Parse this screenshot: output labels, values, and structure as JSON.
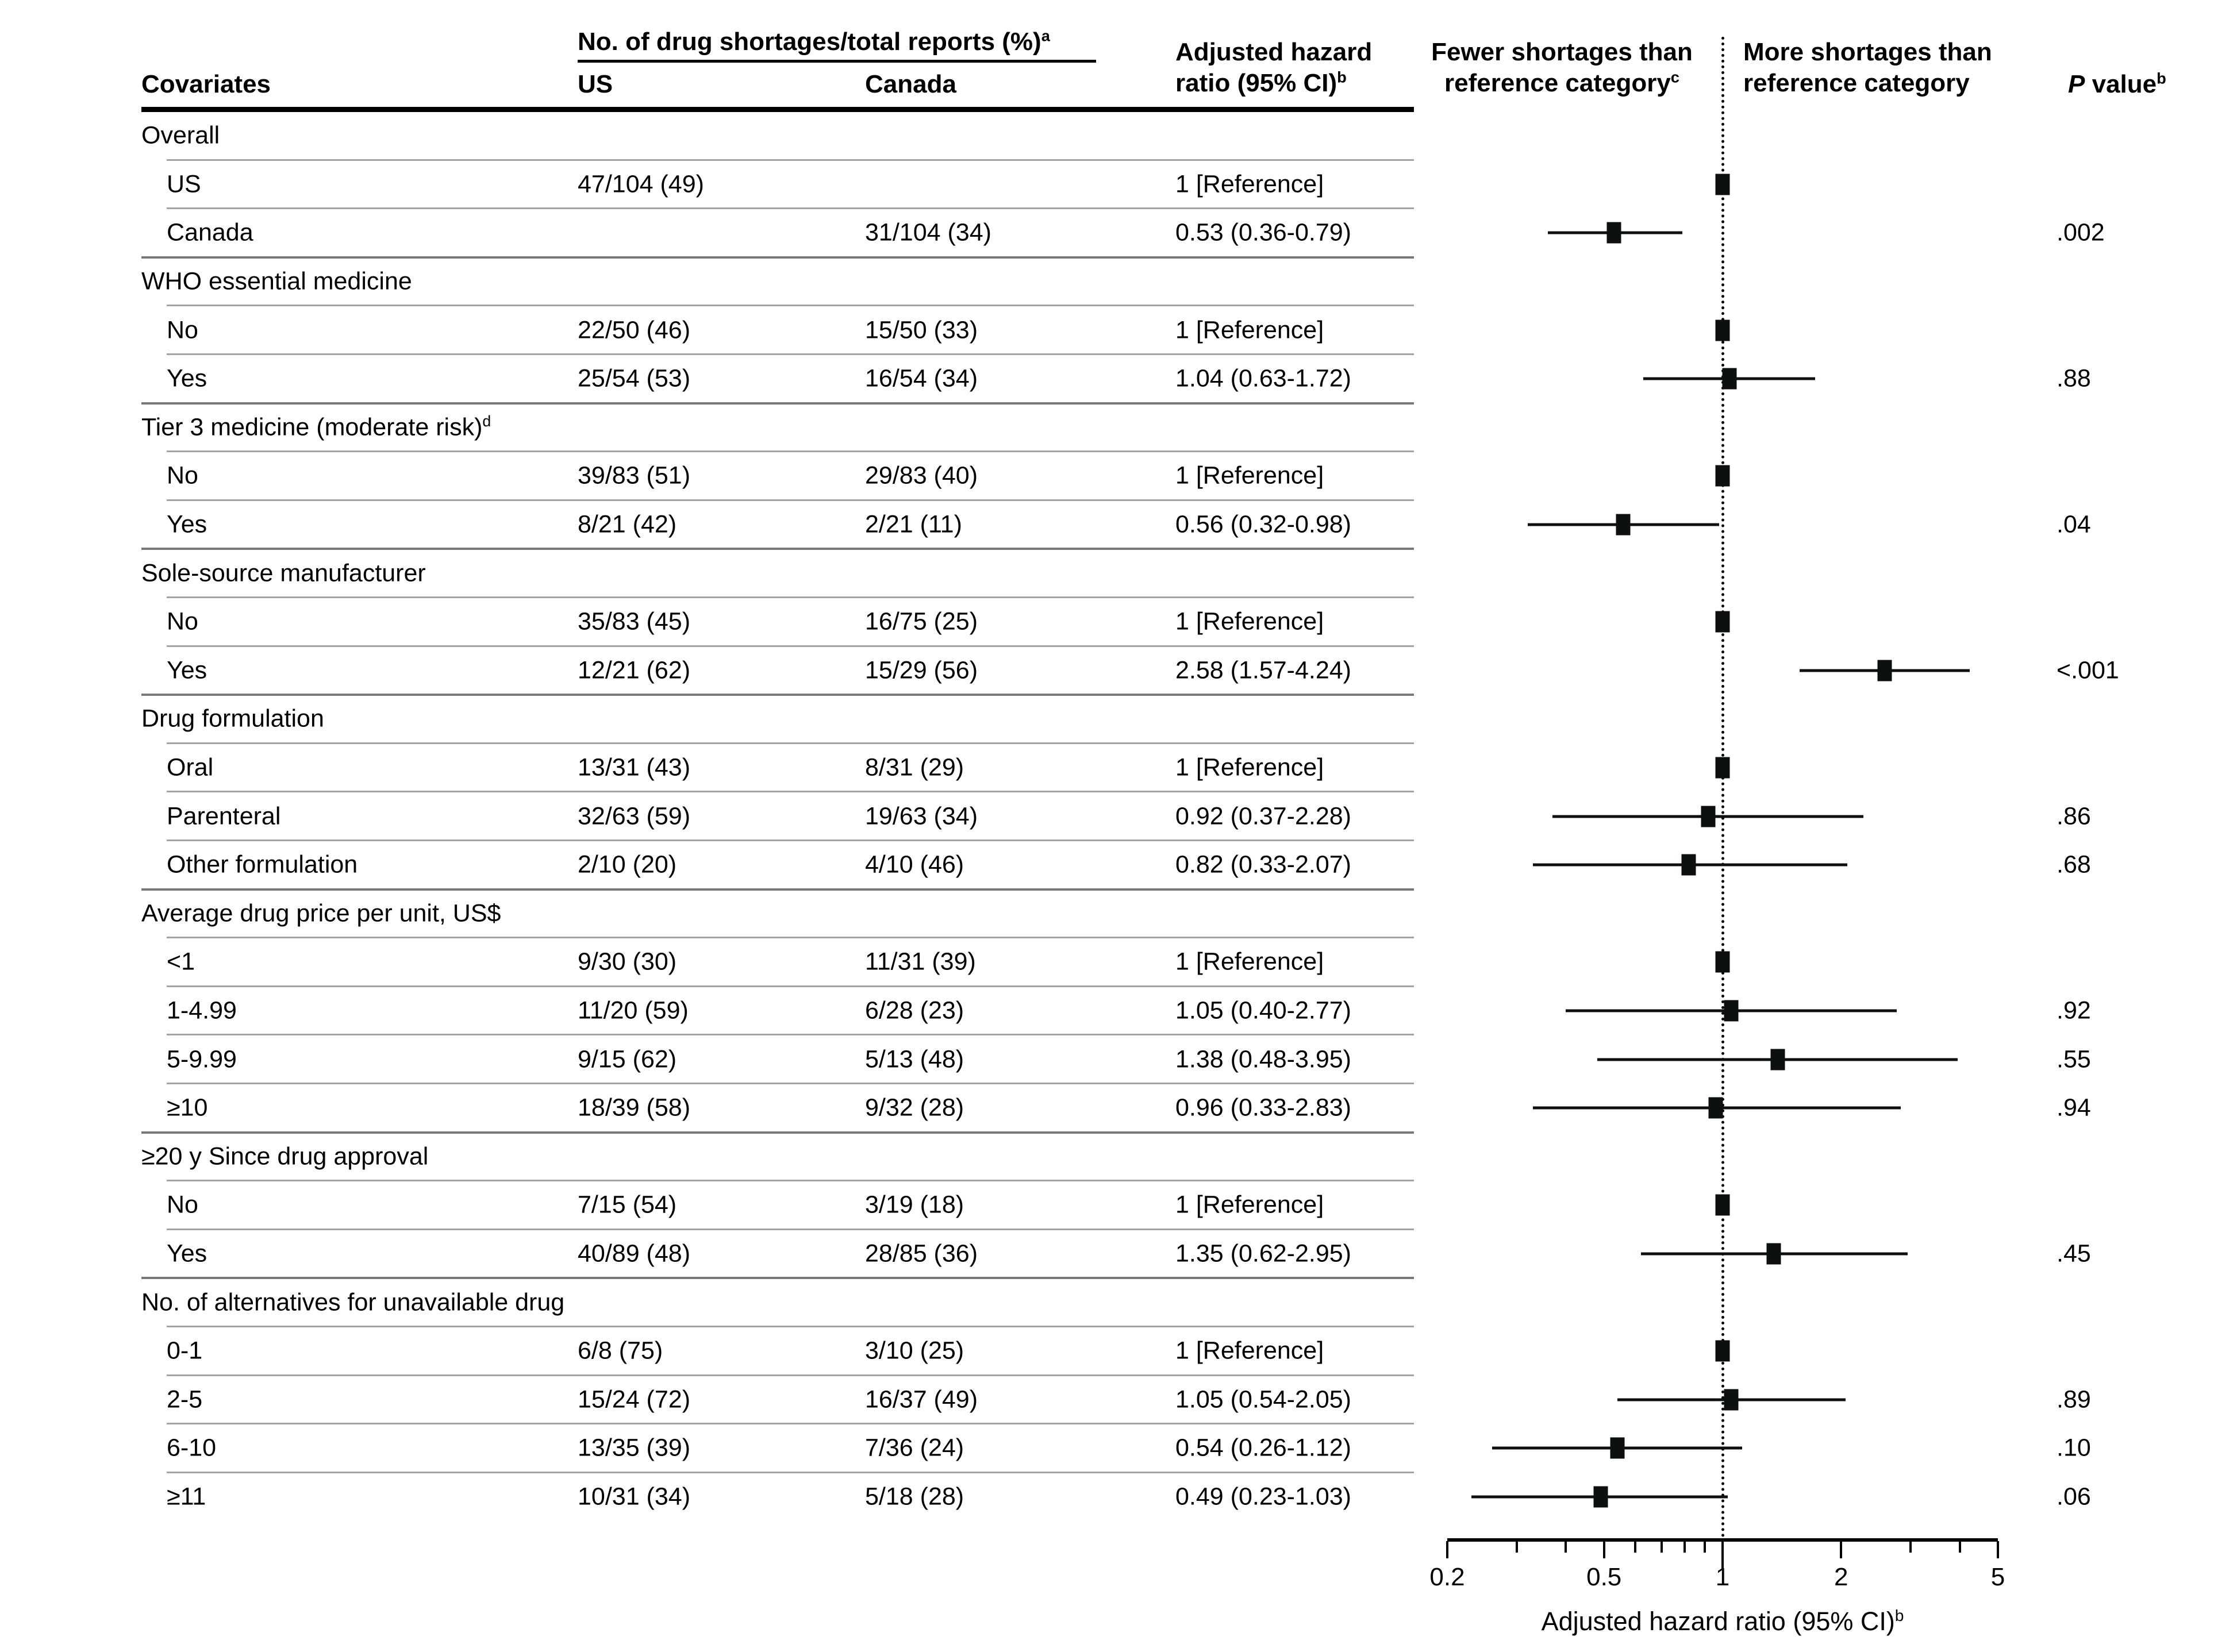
{
  "header": {
    "covariates": "Covariates",
    "group_col": "No. of drug shortages/total reports (%)",
    "group_col_sup": "a",
    "us": "US",
    "canada": "Canada",
    "ahr_line1": "Adjusted hazard",
    "ahr_line2": "ratio (95% CI)",
    "ahr_sup": "b",
    "fewer_line1": "Fewer shortages than",
    "fewer_line2": "reference category",
    "fewer_sup": "c",
    "more_line1": "More shortages than",
    "more_line2": "reference category",
    "p_italic": "P",
    "p_rest": "value",
    "p_sup": "b"
  },
  "axis": {
    "min": 0.2,
    "max": 5,
    "ref_value": 1,
    "tick_labels": [
      "0.2",
      "0.5",
      "1",
      "2",
      "5"
    ],
    "tick_label_values": [
      0.2,
      0.5,
      1,
      2,
      5
    ],
    "minor_ticks": [
      0.3,
      0.4,
      0.6,
      0.7,
      0.8,
      0.9,
      3,
      4
    ],
    "caption": "Adjusted hazard ratio (95% CI)",
    "caption_sup": "b"
  },
  "colors": {
    "text": "#000000",
    "marker": "#0c1011",
    "separator_sub": "#a3a3a3",
    "separator_group": "#787878",
    "rule": "#000000"
  },
  "rows": [
    {
      "type": "group",
      "label": "Overall"
    },
    {
      "type": "sub",
      "label": "US",
      "us": "47/104 (49)",
      "canada": "",
      "ahr_text": "1 [Reference]",
      "hr": 1,
      "ref": true
    },
    {
      "type": "sub",
      "label": "Canada",
      "us": "",
      "canada": "31/104 (34)",
      "ahr_text": "0.53 (0.36-0.79)",
      "hr": 0.53,
      "lo": 0.36,
      "hi": 0.79,
      "p": ".002"
    },
    {
      "type": "group",
      "label": "WHO essential medicine"
    },
    {
      "type": "sub",
      "label": "No",
      "us": "22/50 (46)",
      "canada": "15/50 (33)",
      "ahr_text": "1 [Reference]",
      "hr": 1,
      "ref": true
    },
    {
      "type": "sub",
      "label": "Yes",
      "us": "25/54 (53)",
      "canada": "16/54 (34)",
      "ahr_text": "1.04 (0.63-1.72)",
      "hr": 1.04,
      "lo": 0.63,
      "hi": 1.72,
      "p": ".88"
    },
    {
      "type": "group",
      "label": "Tier 3 medicine (moderate risk)",
      "sup": "d"
    },
    {
      "type": "sub",
      "label": "No",
      "us": "39/83 (51)",
      "canada": "29/83 (40)",
      "ahr_text": "1 [Reference]",
      "hr": 1,
      "ref": true
    },
    {
      "type": "sub",
      "label": "Yes",
      "us": "8/21 (42)",
      "canada": "2/21 (11)",
      "ahr_text": "0.56 (0.32-0.98)",
      "hr": 0.56,
      "lo": 0.32,
      "hi": 0.98,
      "p": ".04"
    },
    {
      "type": "group",
      "label": "Sole-source manufacturer"
    },
    {
      "type": "sub",
      "label": "No",
      "us": "35/83 (45)",
      "canada": "16/75 (25)",
      "ahr_text": "1 [Reference]",
      "hr": 1,
      "ref": true
    },
    {
      "type": "sub",
      "label": "Yes",
      "us": "12/21 (62)",
      "canada": "15/29 (56)",
      "ahr_text": "2.58 (1.57-4.24)",
      "hr": 2.58,
      "lo": 1.57,
      "hi": 4.24,
      "p": "<.001"
    },
    {
      "type": "group",
      "label": "Drug formulation"
    },
    {
      "type": "sub",
      "label": "Oral",
      "us": "13/31 (43)",
      "canada": "8/31 (29)",
      "ahr_text": "1 [Reference]",
      "hr": 1,
      "ref": true
    },
    {
      "type": "sub",
      "label": "Parenteral",
      "us": "32/63 (59)",
      "canada": "19/63 (34)",
      "ahr_text": "0.92 (0.37-2.28)",
      "hr": 0.92,
      "lo": 0.37,
      "hi": 2.28,
      "p": ".86"
    },
    {
      "type": "sub",
      "label": "Other formulation",
      "us": "2/10 (20)",
      "canada": "4/10 (46)",
      "ahr_text": "0.82 (0.33-2.07)",
      "hr": 0.82,
      "lo": 0.33,
      "hi": 2.07,
      "p": ".68"
    },
    {
      "type": "group",
      "label": "Average drug price per unit, US$"
    },
    {
      "type": "sub",
      "label": "<1",
      "us": "9/30 (30)",
      "canada": "11/31 (39)",
      "ahr_text": "1 [Reference]",
      "hr": 1,
      "ref": true
    },
    {
      "type": "sub",
      "label": "1-4.99",
      "us": "11/20 (59)",
      "canada": "6/28 (23)",
      "ahr_text": "1.05 (0.40-2.77)",
      "hr": 1.05,
      "lo": 0.4,
      "hi": 2.77,
      "p": ".92"
    },
    {
      "type": "sub",
      "label": "5-9.99",
      "us": "9/15 (62)",
      "canada": "5/13 (48)",
      "ahr_text": "1.38 (0.48-3.95)",
      "hr": 1.38,
      "lo": 0.48,
      "hi": 3.95,
      "p": ".55"
    },
    {
      "type": "sub",
      "label": "≥10",
      "us": "18/39 (58)",
      "canada": "9/32 (28)",
      "ahr_text": "0.96 (0.33-2.83)",
      "hr": 0.96,
      "lo": 0.33,
      "hi": 2.83,
      "p": ".94"
    },
    {
      "type": "group",
      "label": "≥20 y Since drug approval"
    },
    {
      "type": "sub",
      "label": "No",
      "us": "7/15 (54)",
      "canada": "3/19 (18)",
      "ahr_text": "1 [Reference]",
      "hr": 1,
      "ref": true
    },
    {
      "type": "sub",
      "label": "Yes",
      "us": "40/89 (48)",
      "canada": "28/85 (36)",
      "ahr_text": "1.35 (0.62-2.95)",
      "hr": 1.35,
      "lo": 0.62,
      "hi": 2.95,
      "p": ".45"
    },
    {
      "type": "group",
      "label": "No. of alternatives for unavailable drug"
    },
    {
      "type": "sub",
      "label": "0-1",
      "us": "6/8 (75)",
      "canada": "3/10 (25)",
      "ahr_text": "1 [Reference]",
      "hr": 1,
      "ref": true
    },
    {
      "type": "sub",
      "label": "2-5",
      "us": "15/24 (72)",
      "canada": "16/37 (49)",
      "ahr_text": "1.05 (0.54-2.05)",
      "hr": 1.05,
      "lo": 0.54,
      "hi": 2.05,
      "p": ".89"
    },
    {
      "type": "sub",
      "label": "6-10",
      "us": "13/35 (39)",
      "canada": "7/36 (24)",
      "ahr_text": "0.54 (0.26-1.12)",
      "hr": 0.54,
      "lo": 0.26,
      "hi": 1.12,
      "p": ".10"
    },
    {
      "type": "sub",
      "label": "≥11",
      "us": "10/31 (34)",
      "canada": "5/18 (28)",
      "ahr_text": "0.49 (0.23-1.03)",
      "hr": 0.49,
      "lo": 0.23,
      "hi": 1.03,
      "p": ".06"
    }
  ],
  "chart_data": {
    "type": "forest",
    "xlabel": "Adjusted hazard ratio (95% CI)",
    "x_scale": "log",
    "xlim": [
      0.2,
      5
    ],
    "x_ticks": [
      0.2,
      0.5,
      1,
      2,
      5
    ],
    "reference_line": 1,
    "legend_left": "Fewer shortages than reference category",
    "legend_right": "More shortages than reference category",
    "points": [
      {
        "label": "Overall: US",
        "hr": 1,
        "reference": true
      },
      {
        "label": "Overall: Canada",
        "hr": 0.53,
        "ci": [
          0.36,
          0.79
        ],
        "p": ".002"
      },
      {
        "label": "WHO essential medicine: No",
        "hr": 1,
        "reference": true
      },
      {
        "label": "WHO essential medicine: Yes",
        "hr": 1.04,
        "ci": [
          0.63,
          1.72
        ],
        "p": ".88"
      },
      {
        "label": "Tier 3 medicine (moderate risk): No",
        "hr": 1,
        "reference": true
      },
      {
        "label": "Tier 3 medicine (moderate risk): Yes",
        "hr": 0.56,
        "ci": [
          0.32,
          0.98
        ],
        "p": ".04"
      },
      {
        "label": "Sole-source manufacturer: No",
        "hr": 1,
        "reference": true
      },
      {
        "label": "Sole-source manufacturer: Yes",
        "hr": 2.58,
        "ci": [
          1.57,
          4.24
        ],
        "p": "<.001"
      },
      {
        "label": "Drug formulation: Oral",
        "hr": 1,
        "reference": true
      },
      {
        "label": "Drug formulation: Parenteral",
        "hr": 0.92,
        "ci": [
          0.37,
          2.28
        ],
        "p": ".86"
      },
      {
        "label": "Drug formulation: Other formulation",
        "hr": 0.82,
        "ci": [
          0.33,
          2.07
        ],
        "p": ".68"
      },
      {
        "label": "Average drug price per unit, US$: <1",
        "hr": 1,
        "reference": true
      },
      {
        "label": "Average drug price per unit, US$: 1-4.99",
        "hr": 1.05,
        "ci": [
          0.4,
          2.77
        ],
        "p": ".92"
      },
      {
        "label": "Average drug price per unit, US$: 5-9.99",
        "hr": 1.38,
        "ci": [
          0.48,
          3.95
        ],
        "p": ".55"
      },
      {
        "label": "Average drug price per unit, US$: ≥10",
        "hr": 0.96,
        "ci": [
          0.33,
          2.83
        ],
        "p": ".94"
      },
      {
        "label": "≥20 y Since drug approval: No",
        "hr": 1,
        "reference": true
      },
      {
        "label": "≥20 y Since drug approval: Yes",
        "hr": 1.35,
        "ci": [
          0.62,
          2.95
        ],
        "p": ".45"
      },
      {
        "label": "No. of alternatives for unavailable drug: 0-1",
        "hr": 1,
        "reference": true
      },
      {
        "label": "No. of alternatives for unavailable drug: 2-5",
        "hr": 1.05,
        "ci": [
          0.54,
          2.05
        ],
        "p": ".89"
      },
      {
        "label": "No. of alternatives for unavailable drug: 6-10",
        "hr": 0.54,
        "ci": [
          0.26,
          1.12
        ],
        "p": ".10"
      },
      {
        "label": "No. of alternatives for unavailable drug: ≥11",
        "hr": 0.49,
        "ci": [
          0.23,
          1.03
        ],
        "p": ".06"
      }
    ]
  }
}
